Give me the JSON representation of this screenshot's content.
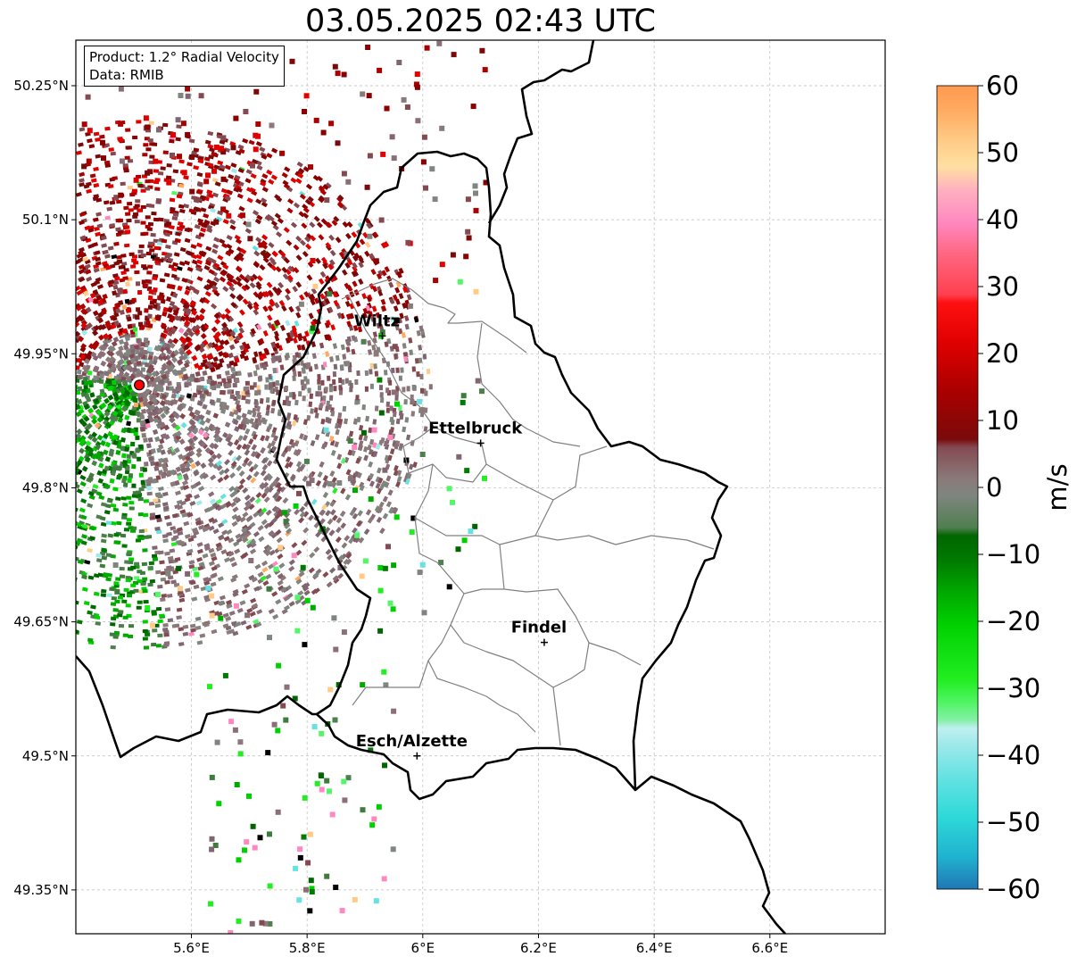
{
  "title": "03.05.2025 02:43 UTC",
  "info": {
    "product": "Product: 1.2° Radial Velocity",
    "source": "Data: RMIB"
  },
  "map": {
    "lon_range": [
      5.4,
      6.8
    ],
    "lat_range": [
      49.3,
      50.3
    ],
    "lon_ticks": [
      "5.6°E",
      "5.8°E",
      "6°E",
      "6.2°E",
      "6.4°E",
      "6.6°E"
    ],
    "lat_ticks": [
      "50.25°N",
      "50.1°N",
      "49.95°N",
      "49.8°N",
      "49.65°N",
      "49.5°N",
      "49.35°N"
    ],
    "grid": true,
    "radar_site": {
      "lon": 5.51,
      "lat": 49.915
    },
    "cities": [
      {
        "name": "Wiltz",
        "lon": 5.93,
        "lat": 49.97
      },
      {
        "name": "Ettelbruck",
        "lon": 6.1,
        "lat": 49.85
      },
      {
        "name": "Findel",
        "lon": 6.21,
        "lat": 49.627
      },
      {
        "name": "Esch/Alzette",
        "lon": 5.99,
        "lat": 49.5
      }
    ]
  },
  "colorbar": {
    "label": "m/s",
    "min": -60,
    "max": 60,
    "ticks": [
      "60",
      "50",
      "40",
      "30",
      "20",
      "10",
      "0",
      "−10",
      "−20",
      "−30",
      "−40",
      "−50",
      "−60"
    ],
    "colors": {
      "-60": "#1f77b4",
      "-55": "#20b2d0",
      "-50": "#2ed9d9",
      "-45": "#66e2e2",
      "-40": "#9ee9ea",
      "-36": "#bff0f0",
      "-33": "#86efa8",
      "-30": "#55f56a",
      "-27": "#22ee22",
      "-20": "#00d000",
      "-15": "#00a800",
      "-10": "#007a00",
      "-6": "#006600",
      "-5": "#4f7f4f",
      "-1": "#7f857f",
      "1": "#8a7a7a",
      "5": "#844a52",
      "7": "#7a0a0a",
      "15": "#aa0000",
      "22": "#e00000",
      "28": "#ff1010",
      "29": "#ff4050",
      "35": "#ff6680",
      "40": "#ff88c0",
      "44": "#ffb0c0",
      "48": "#ffe0a0",
      "52": "#ffcc88",
      "56": "#ffaa60",
      "60": "#ff9a50"
    }
  }
}
